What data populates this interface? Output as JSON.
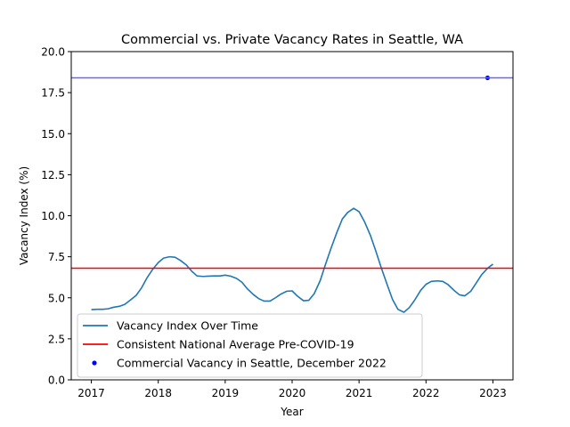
{
  "chart_data": {
    "type": "line",
    "title": "Commercial vs. Private Vacancy Rates in Seattle, WA",
    "xlabel": "Year",
    "ylabel": "Vacancy Index (%)",
    "xlim": [
      2016.7,
      2023.3
    ],
    "ylim": [
      0,
      20
    ],
    "xticks": [
      2017,
      2018,
      2019,
      2020,
      2021,
      2022,
      2023
    ],
    "xtick_labels": [
      "2017",
      "2018",
      "2019",
      "2020",
      "2021",
      "2022",
      "2023"
    ],
    "yticks": [
      0,
      2.5,
      5,
      7.5,
      10,
      12.5,
      15,
      17.5,
      20
    ],
    "ytick_labels": [
      "0.0",
      "2.5",
      "5.0",
      "7.5",
      "10.0",
      "12.5",
      "15.0",
      "17.5",
      "20.0"
    ],
    "grid": false,
    "legend_position": "lower-left",
    "series": [
      {
        "name": "Vacancy Index Over Time",
        "kind": "line",
        "color": "#1f77b4",
        "x": [
          2017.0,
          2017.08,
          2017.17,
          2017.25,
          2017.33,
          2017.42,
          2017.5,
          2017.58,
          2017.67,
          2017.75,
          2017.83,
          2017.92,
          2018.0,
          2018.08,
          2018.17,
          2018.25,
          2018.33,
          2018.42,
          2018.5,
          2018.58,
          2018.67,
          2018.75,
          2018.83,
          2018.92,
          2019.0,
          2019.08,
          2019.17,
          2019.25,
          2019.33,
          2019.42,
          2019.5,
          2019.58,
          2019.67,
          2019.75,
          2019.83,
          2019.92,
          2020.0,
          2020.08,
          2020.17,
          2020.25,
          2020.33,
          2020.42,
          2020.5,
          2020.58,
          2020.67,
          2020.75,
          2020.83,
          2020.92,
          2021.0,
          2021.08,
          2021.17,
          2021.25,
          2021.33,
          2021.42,
          2021.5,
          2021.58,
          2021.67,
          2021.75,
          2021.83,
          2021.92,
          2022.0,
          2022.08,
          2022.17,
          2022.25,
          2022.33,
          2022.42,
          2022.5,
          2022.58,
          2022.67,
          2022.75,
          2022.83,
          2022.92,
          2023.0
        ],
        "y": [
          4.28,
          4.3,
          4.3,
          4.33,
          4.42,
          4.48,
          4.6,
          4.85,
          5.15,
          5.6,
          6.2,
          6.75,
          7.15,
          7.42,
          7.5,
          7.47,
          7.28,
          7.0,
          6.62,
          6.33,
          6.3,
          6.32,
          6.33,
          6.33,
          6.38,
          6.32,
          6.18,
          5.95,
          5.55,
          5.2,
          4.95,
          4.8,
          4.8,
          5.0,
          5.22,
          5.4,
          5.42,
          5.1,
          4.82,
          4.85,
          5.25,
          6.05,
          7.05,
          8.0,
          9.0,
          9.8,
          10.2,
          10.45,
          10.25,
          9.65,
          8.8,
          7.85,
          6.85,
          5.8,
          4.9,
          4.3,
          4.12,
          4.4,
          4.85,
          5.45,
          5.82,
          6.0,
          6.03,
          6.0,
          5.8,
          5.45,
          5.18,
          5.12,
          5.4,
          5.9,
          6.4,
          6.8,
          7.05
        ]
      },
      {
        "name": "Consistent National Average Pre-COVID-19",
        "kind": "hline",
        "color": "#ff0000",
        "y": 6.8
      },
      {
        "name": "Commercial Vacancy in Seattle, December 2022",
        "kind": "point",
        "color": "#0000ff",
        "x": 2022.92,
        "y": 18.4
      },
      {
        "name": "",
        "kind": "hline",
        "color": "#6666ff",
        "y": 18.4
      }
    ]
  }
}
